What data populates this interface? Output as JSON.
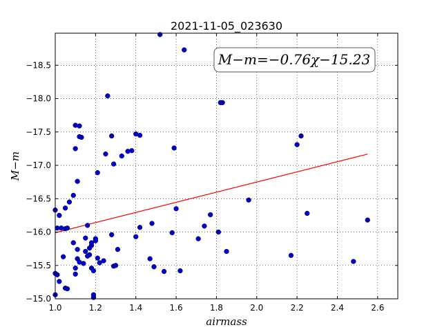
{
  "chart_data": {
    "type": "scatter",
    "title": "2021-11-05_023630",
    "xlabel": "airmass",
    "ylabel": "M−m",
    "xlim": [
      1.0,
      2.7
    ],
    "ylim": [
      -18.98,
      -15.0
    ],
    "y_inverted": true,
    "grid": true,
    "x_ticks": [
      1.0,
      1.2,
      1.4,
      1.6,
      1.8,
      2.0,
      2.2,
      2.4,
      2.6
    ],
    "x_tick_labels": [
      "1.0",
      "1.2",
      "1.4",
      "1.6",
      "1.8",
      "2.0",
      "2.2",
      "2.4",
      "2.6"
    ],
    "y_ticks": [
      -15.0,
      -15.5,
      -16.0,
      -16.5,
      -17.0,
      -17.5,
      -18.0,
      -18.5
    ],
    "y_tick_labels": [
      "−15.0",
      "−15.5",
      "−16.0",
      "−16.5",
      "−17.0",
      "−17.5",
      "−18.0",
      "−18.5"
    ],
    "fit_annotation": "M−m=−0.76χ−15.23",
    "fit_line": {
      "slope": -0.76,
      "intercept": -15.23,
      "x_range": [
        1.0,
        2.55
      ],
      "color": "#ff0000"
    },
    "marker_color": "#0000cc",
    "points": [
      {
        "x": 1.0,
        "y": -15.06
      },
      {
        "x": 1.01,
        "y": -15.36
      },
      {
        "x": 1.0,
        "y": -15.38
      },
      {
        "x": 1.02,
        "y": -15.26
      },
      {
        "x": 1.04,
        "y": -15.63
      },
      {
        "x": 1.05,
        "y": -15.16
      },
      {
        "x": 1.06,
        "y": -15.15
      },
      {
        "x": 1.01,
        "y": -16.06
      },
      {
        "x": 1.03,
        "y": -16.06
      },
      {
        "x": 1.05,
        "y": -16.05
      },
      {
        "x": 1.06,
        "y": -16.06
      },
      {
        "x": 1.0,
        "y": -16.33
      },
      {
        "x": 1.02,
        "y": -16.25
      },
      {
        "x": 1.05,
        "y": -16.36
      },
      {
        "x": 1.07,
        "y": -16.45
      },
      {
        "x": 1.09,
        "y": -16.55
      },
      {
        "x": 1.09,
        "y": -15.84
      },
      {
        "x": 1.1,
        "y": -15.37
      },
      {
        "x": 1.1,
        "y": -15.46
      },
      {
        "x": 1.11,
        "y": -15.6
      },
      {
        "x": 1.11,
        "y": -15.74
      },
      {
        "x": 1.12,
        "y": -15.55
      },
      {
        "x": 1.14,
        "y": -15.53
      },
      {
        "x": 1.15,
        "y": -15.71
      },
      {
        "x": 1.15,
        "y": -15.91
      },
      {
        "x": 1.16,
        "y": -15.64
      },
      {
        "x": 1.17,
        "y": -15.66
      },
      {
        "x": 1.17,
        "y": -15.76
      },
      {
        "x": 1.18,
        "y": -15.8
      },
      {
        "x": 1.18,
        "y": -15.84
      },
      {
        "x": 1.18,
        "y": -15.46
      },
      {
        "x": 1.19,
        "y": -15.42
      },
      {
        "x": 1.19,
        "y": -15.02
      },
      {
        "x": 1.19,
        "y": -15.06
      },
      {
        "x": 1.2,
        "y": -15.9
      },
      {
        "x": 1.2,
        "y": -15.87
      },
      {
        "x": 1.21,
        "y": -15.61
      },
      {
        "x": 1.22,
        "y": -15.54
      },
      {
        "x": 1.24,
        "y": -15.57
      },
      {
        "x": 1.16,
        "y": -16.1
      },
      {
        "x": 1.11,
        "y": -16.76
      },
      {
        "x": 1.1,
        "y": -17.25
      },
      {
        "x": 1.12,
        "y": -17.43
      },
      {
        "x": 1.13,
        "y": -17.42
      },
      {
        "x": 1.1,
        "y": -17.6
      },
      {
        "x": 1.12,
        "y": -17.59
      },
      {
        "x": 1.21,
        "y": -16.89
      },
      {
        "x": 1.25,
        "y": -17.17
      },
      {
        "x": 1.28,
        "y": -17.44
      },
      {
        "x": 1.29,
        "y": -17.02
      },
      {
        "x": 1.33,
        "y": -17.14
      },
      {
        "x": 1.36,
        "y": -17.21
      },
      {
        "x": 1.38,
        "y": -17.22
      },
      {
        "x": 1.4,
        "y": -17.47
      },
      {
        "x": 1.42,
        "y": -17.45
      },
      {
        "x": 1.26,
        "y": -18.04
      },
      {
        "x": 1.29,
        "y": -15.49
      },
      {
        "x": 1.3,
        "y": -15.5
      },
      {
        "x": 1.31,
        "y": -15.74
      },
      {
        "x": 1.28,
        "y": -15.96
      },
      {
        "x": 1.4,
        "y": -15.93
      },
      {
        "x": 1.42,
        "y": -16.07
      },
      {
        "x": 1.47,
        "y": -15.6
      },
      {
        "x": 1.48,
        "y": -16.13
      },
      {
        "x": 1.49,
        "y": -15.48
      },
      {
        "x": 1.54,
        "y": -15.41
      },
      {
        "x": 1.52,
        "y": -18.96
      },
      {
        "x": 1.58,
        "y": -15.99
      },
      {
        "x": 1.6,
        "y": -16.35
      },
      {
        "x": 1.59,
        "y": -17.26
      },
      {
        "x": 1.62,
        "y": -15.42
      },
      {
        "x": 1.64,
        "y": -18.73
      },
      {
        "x": 1.71,
        "y": -15.9
      },
      {
        "x": 1.74,
        "y": -16.09
      },
      {
        "x": 1.77,
        "y": -16.26
      },
      {
        "x": 1.81,
        "y": -16.0
      },
      {
        "x": 1.82,
        "y": -17.94
      },
      {
        "x": 1.83,
        "y": -17.94
      },
      {
        "x": 1.85,
        "y": -15.71
      },
      {
        "x": 1.96,
        "y": -16.48
      },
      {
        "x": 2.17,
        "y": -15.65
      },
      {
        "x": 2.2,
        "y": -17.31
      },
      {
        "x": 2.22,
        "y": -17.44
      },
      {
        "x": 2.25,
        "y": -16.28
      },
      {
        "x": 2.48,
        "y": -15.56
      },
      {
        "x": 2.55,
        "y": -16.18
      }
    ]
  }
}
